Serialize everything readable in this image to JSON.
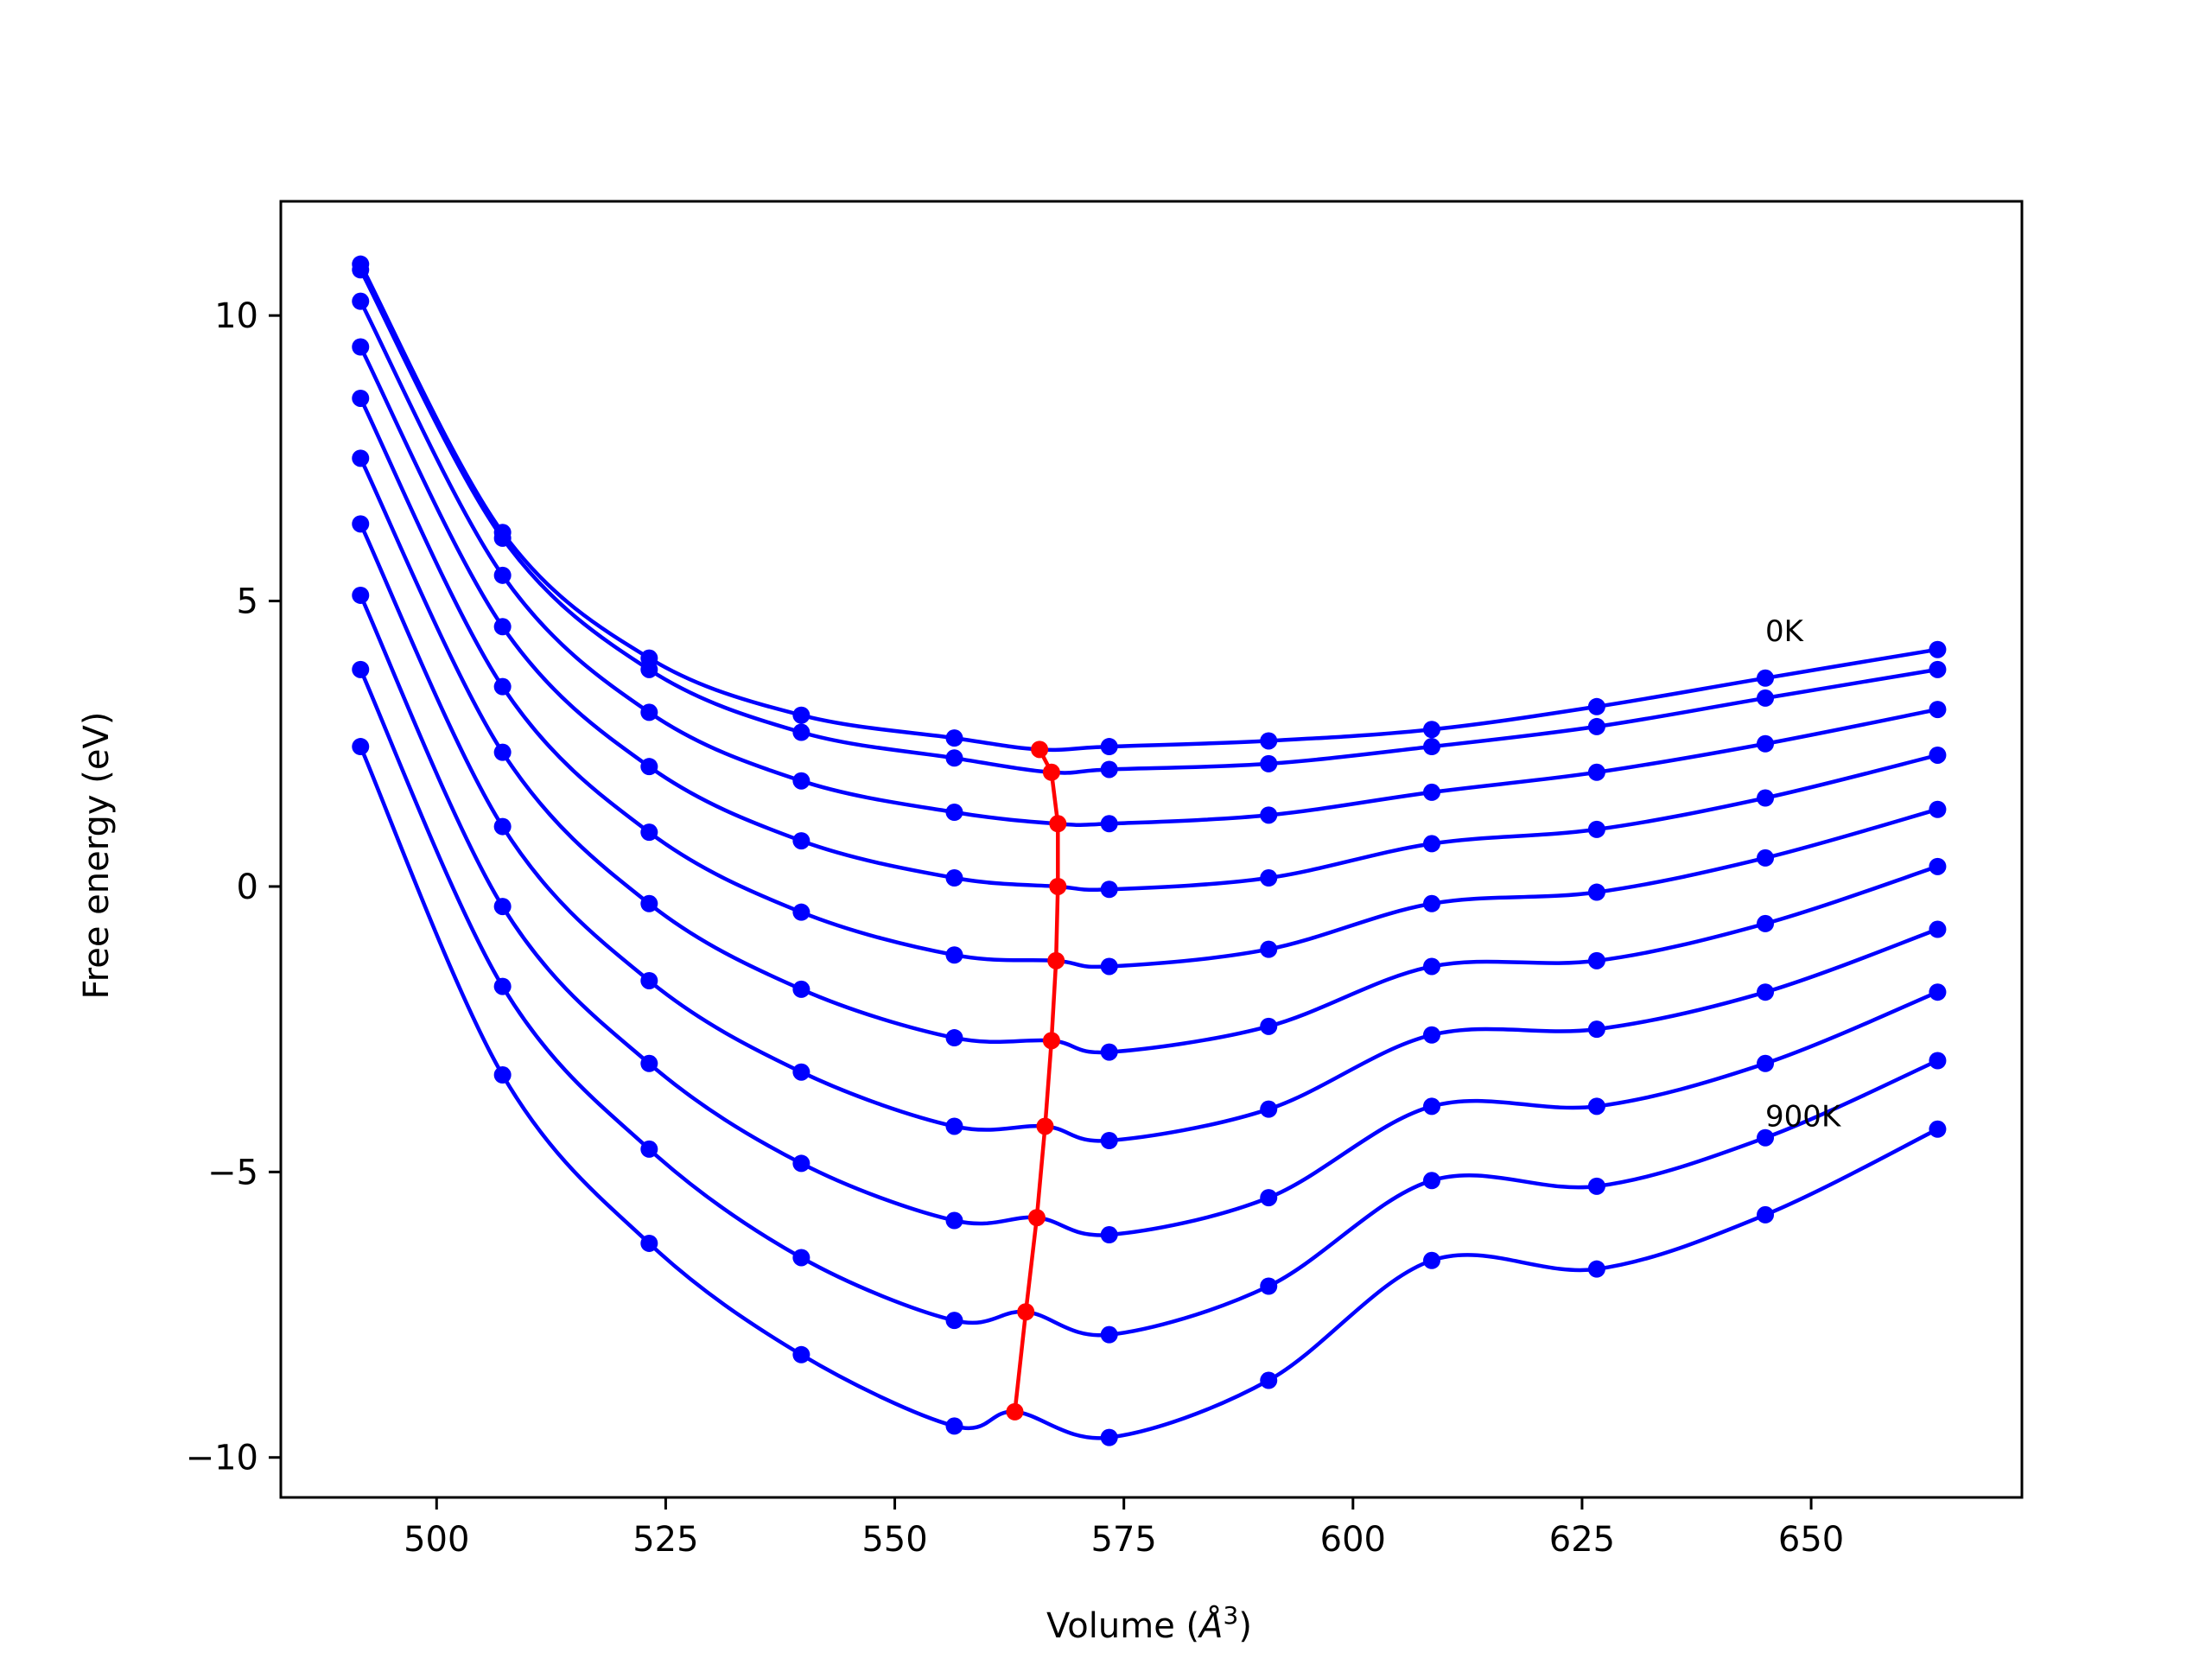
{
  "chart_data": {
    "type": "line",
    "xlabel": "Volume (",
    "xlabel_sym": "Å",
    "xlabel_sup": "3",
    "xlabel_end": ")",
    "ylabel": "Free energy (eV)",
    "xlim": [
      483,
      673
    ],
    "ylim": [
      -10.7,
      12
    ],
    "xticks": [
      500,
      525,
      550,
      575,
      600,
      625,
      650
    ],
    "yticks": [
      10,
      5,
      0,
      -5,
      -10
    ],
    "ytick_labels": [
      "10",
      "5",
      "0",
      "−5",
      "−10"
    ],
    "grid": false,
    "annotations": [
      {
        "text": "0K",
        "x": 645,
        "y": 4.3
      },
      {
        "text": "900K",
        "x": 645,
        "y": -4.2
      }
    ],
    "colors": {
      "fit": "#0000ff",
      "points": "#0000ff",
      "minimum": "#ff0000"
    },
    "volumes": [
      491.7,
      507.2,
      523.2,
      539.8,
      556.5,
      573.4,
      590.8,
      608.6,
      626.6,
      645.0,
      663.8
    ],
    "series": [
      {
        "energies": [
          10.9,
          6.2,
          4.0,
          3.0,
          2.6,
          2.45,
          2.55,
          2.75,
          3.15,
          3.65,
          4.15
        ],
        "min_v": 565.8,
        "min_e": 2.4
      },
      {
        "energies": [
          10.8,
          6.1,
          3.8,
          2.7,
          2.25,
          2.05,
          2.15,
          2.45,
          2.8,
          3.3,
          3.8
        ],
        "min_v": 567.1,
        "min_e": 2.0
      },
      {
        "energies": [
          10.25,
          5.45,
          3.05,
          1.85,
          1.3,
          1.1,
          1.25,
          1.65,
          2.0,
          2.5,
          3.1
        ],
        "min_v": 567.8,
        "min_e": 1.1
      },
      {
        "energies": [
          9.45,
          4.55,
          2.1,
          0.8,
          0.15,
          -0.05,
          0.15,
          0.75,
          1.0,
          1.55,
          2.3
        ],
        "min_v": 567.8,
        "min_e": 0.0
      },
      {
        "energies": [
          8.55,
          3.5,
          0.95,
          -0.45,
          -1.2,
          -1.4,
          -1.1,
          -0.3,
          -0.1,
          0.5,
          1.35
        ],
        "min_v": 567.6,
        "min_e": -1.3
      },
      {
        "energies": [
          7.5,
          2.35,
          -0.3,
          -1.8,
          -2.65,
          -2.9,
          -2.45,
          -1.4,
          -1.3,
          -0.65,
          0.35
        ],
        "min_v": 567.1,
        "min_e": -2.7
      },
      {
        "energies": [
          6.35,
          1.05,
          -1.65,
          -3.25,
          -4.2,
          -4.45,
          -3.9,
          -2.6,
          -2.5,
          -1.85,
          -0.75
        ],
        "min_v": 566.4,
        "min_e": -4.2
      },
      {
        "energies": [
          5.1,
          -0.35,
          -3.1,
          -4.85,
          -5.85,
          -6.1,
          -5.45,
          -3.85,
          -3.85,
          -3.1,
          -1.85
        ],
        "min_v": 565.5,
        "min_e": -5.8
      },
      {
        "energies": [
          3.8,
          -1.75,
          -4.6,
          -6.5,
          -7.6,
          -7.85,
          -7.0,
          -5.15,
          -5.25,
          -4.4,
          -3.05
        ],
        "min_v": 564.3,
        "min_e": -7.45
      },
      {
        "energies": [
          2.45,
          -3.3,
          -6.25,
          -8.2,
          -9.45,
          -9.65,
          -8.65,
          -6.55,
          -6.7,
          -5.75,
          -4.25
        ],
        "min_v": 563.1,
        "min_e": -9.2
      }
    ]
  }
}
